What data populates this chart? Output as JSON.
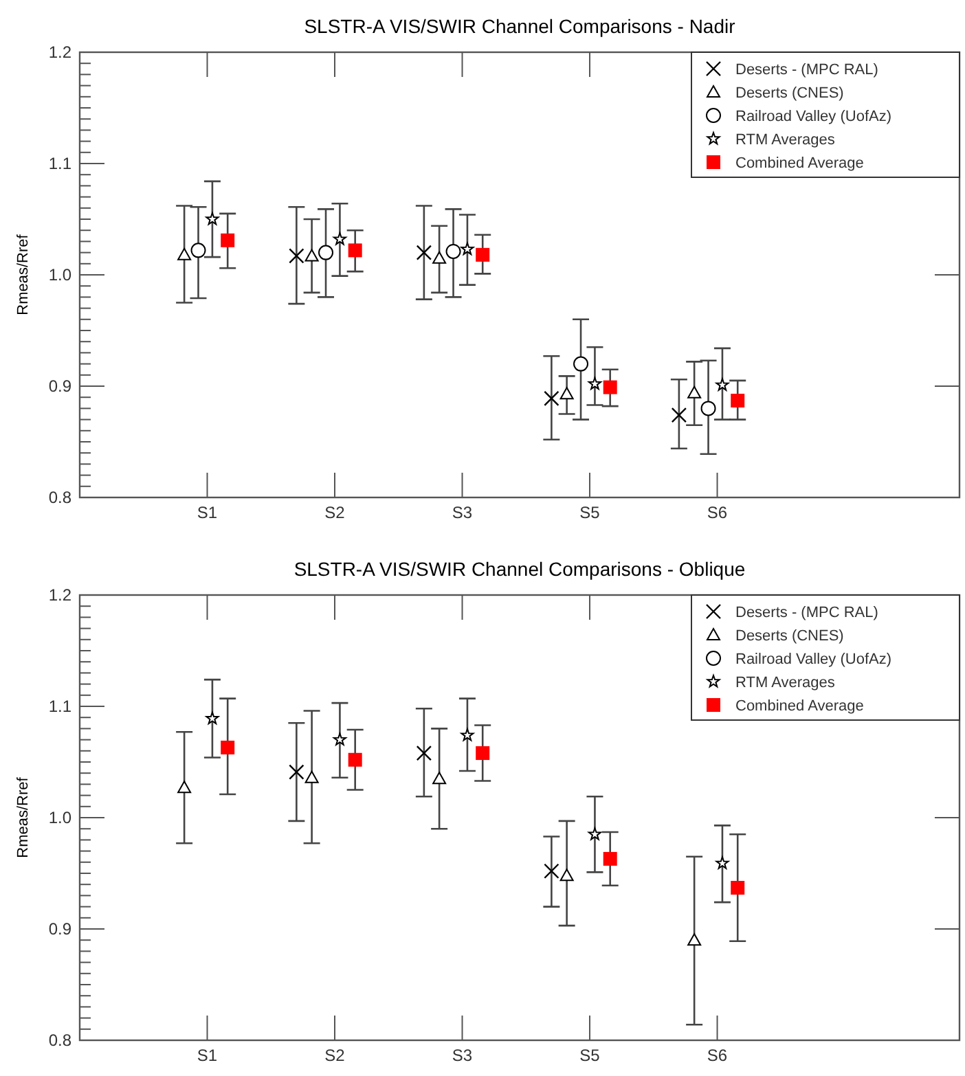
{
  "chart_data": [
    {
      "type": "scatter",
      "title": "SLSTR-A VIS/SWIR Channel Comparisons - Nadir",
      "ylabel": "Rmeas/Rref",
      "categories": [
        "S1",
        "S2",
        "S3",
        "S5",
        "S6"
      ],
      "ylim": [
        0.8,
        1.2
      ],
      "yticks": [
        {
          "value": 0.8,
          "label": "0.8"
        },
        {
          "value": 0.9,
          "label": "0.9"
        },
        {
          "value": 1.0,
          "label": "1.0"
        },
        {
          "value": 1.1,
          "label": "1.1"
        },
        {
          "value": 1.2,
          "label": "1.2"
        }
      ],
      "legend": "top right",
      "grid": false,
      "series": [
        {
          "name": "Deserts - (MPC RAL)",
          "color": "#000000",
          "marker": "cross",
          "values": [
            null,
            1.017,
            1.02,
            0.889,
            0.874
          ],
          "errors": [
            null,
            [
              0.974,
              1.061
            ],
            [
              0.978,
              1.062
            ],
            [
              0.852,
              0.927
            ],
            [
              0.844,
              0.906
            ]
          ]
        },
        {
          "name": "Deserts (CNES)",
          "color": "#000000",
          "marker": "triangle",
          "values": [
            1.018,
            1.017,
            1.015,
            0.893,
            0.894
          ],
          "errors": [
            [
              0.975,
              1.062
            ],
            [
              0.984,
              1.05
            ],
            [
              0.984,
              1.044
            ],
            [
              0.875,
              0.909
            ],
            [
              0.865,
              0.922
            ]
          ]
        },
        {
          "name": "Railroad Valley (UofAz)",
          "color": "#000000",
          "marker": "circle",
          "values": [
            1.022,
            1.02,
            1.021,
            0.92,
            0.88
          ],
          "errors": [
            [
              0.979,
              1.061
            ],
            [
              0.98,
              1.059
            ],
            [
              0.98,
              1.059
            ],
            [
              0.87,
              0.96
            ],
            [
              0.839,
              0.923
            ]
          ]
        },
        {
          "name": "RTM Averages",
          "color": "#000000",
          "marker": "star",
          "values": [
            1.05,
            1.032,
            1.023,
            0.902,
            0.901
          ],
          "errors": [
            [
              1.016,
              1.084
            ],
            [
              0.999,
              1.064
            ],
            [
              0.991,
              1.054
            ],
            [
              0.883,
              0.935
            ],
            [
              0.87,
              0.934
            ]
          ]
        },
        {
          "name": "Combined Average",
          "color": "#ff0000",
          "marker": "square",
          "values": [
            1.031,
            1.022,
            1.018,
            0.899,
            0.887
          ],
          "errors": [
            [
              1.006,
              1.055
            ],
            [
              1.003,
              1.04
            ],
            [
              1.001,
              1.036
            ],
            [
              0.882,
              0.915
            ],
            [
              0.87,
              0.905
            ]
          ]
        }
      ]
    },
    {
      "type": "scatter",
      "title": "SLSTR-A VIS/SWIR Channel Comparisons - Oblique",
      "ylabel": "Rmeas/Rref",
      "categories": [
        "S1",
        "S2",
        "S3",
        "S5",
        "S6"
      ],
      "ylim": [
        0.8,
        1.2
      ],
      "yticks": [
        {
          "value": 0.8,
          "label": "0.8"
        },
        {
          "value": 0.9,
          "label": "0.9"
        },
        {
          "value": 1.0,
          "label": "1.0"
        },
        {
          "value": 1.1,
          "label": "1.1"
        },
        {
          "value": 1.2,
          "label": "1.2"
        }
      ],
      "legend": "top right",
      "grid": false,
      "series": [
        {
          "name": "Deserts - (MPC RAL)",
          "color": "#000000",
          "marker": "cross",
          "values": [
            null,
            1.041,
            1.058,
            0.952,
            null
          ],
          "errors": [
            null,
            [
              0.997,
              1.085
            ],
            [
              1.019,
              1.098
            ],
            [
              0.92,
              0.983
            ],
            null
          ]
        },
        {
          "name": "Deserts (CNES)",
          "color": "#000000",
          "marker": "triangle",
          "values": [
            1.027,
            1.036,
            1.035,
            0.948,
            0.89
          ],
          "errors": [
            [
              0.977,
              1.077
            ],
            [
              0.977,
              1.096
            ],
            [
              0.99,
              1.08
            ],
            [
              0.903,
              0.997
            ],
            [
              0.814,
              0.965
            ]
          ]
        },
        {
          "name": "Railroad Valley (UofAz)",
          "color": "#000000",
          "marker": "circle",
          "values": [
            null,
            null,
            null,
            null,
            null
          ],
          "errors": [
            null,
            null,
            null,
            null,
            null
          ]
        },
        {
          "name": "RTM Averages",
          "color": "#000000",
          "marker": "star",
          "values": [
            1.089,
            1.07,
            1.074,
            0.985,
            0.959
          ],
          "errors": [
            [
              1.054,
              1.124
            ],
            [
              1.036,
              1.103
            ],
            [
              1.042,
              1.107
            ],
            [
              0.951,
              1.019
            ],
            [
              0.924,
              0.993
            ]
          ]
        },
        {
          "name": "Combined Average",
          "color": "#ff0000",
          "marker": "square",
          "values": [
            1.063,
            1.052,
            1.058,
            0.963,
            0.937
          ],
          "errors": [
            [
              1.021,
              1.107
            ],
            [
              1.025,
              1.079
            ],
            [
              1.033,
              1.083
            ],
            [
              0.939,
              0.987
            ],
            [
              0.889,
              0.985
            ]
          ]
        }
      ]
    }
  ]
}
